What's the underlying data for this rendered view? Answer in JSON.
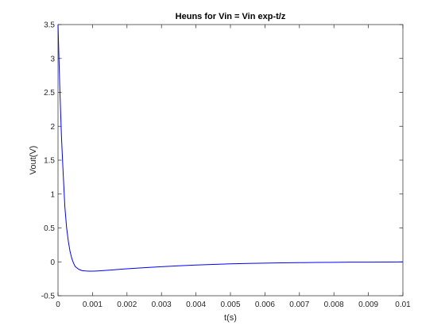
{
  "chart_data": {
    "type": "line",
    "title": "Heuns for Vin = Vin exp-t/z",
    "xlabel": "t(s)",
    "ylabel": "Vout(V)",
    "xlim": [
      0,
      0.01
    ],
    "ylim": [
      -0.5,
      3.5
    ],
    "x_ticks": [
      0,
      0.001,
      0.002,
      0.003,
      0.004,
      0.005,
      0.006,
      0.007,
      0.008,
      0.009,
      0.01
    ],
    "x_tick_labels": [
      "0",
      "0.001",
      "0.002",
      "0.003",
      "0.004",
      "0.005",
      "0.006",
      "0.007",
      "0.008",
      "0.009",
      "0.01"
    ],
    "y_ticks": [
      -0.5,
      0,
      0.5,
      1,
      1.5,
      2,
      2.5,
      3,
      3.5
    ],
    "y_tick_labels": [
      "-0.5",
      "0",
      "0.5",
      "1",
      "1.5",
      "2",
      "2.5",
      "3",
      "3.5"
    ],
    "grid": false,
    "series": [
      {
        "color": "#0000ff",
        "x": [
          0,
          5e-05,
          0.0001,
          0.00015,
          0.0002,
          0.00025,
          0.0003,
          0.00035,
          0.0004,
          0.00045,
          0.0005,
          0.0006,
          0.0007,
          0.0008,
          0.0009,
          0.001,
          0.0011,
          0.0012,
          0.0014,
          0.0016,
          0.0018,
          0.002,
          0.0025,
          0.003,
          0.0035,
          0.004,
          0.0045,
          0.005,
          0.0055,
          0.006,
          0.0065,
          0.007,
          0.0075,
          0.008,
          0.0085,
          0.009,
          0.0095,
          0.01
        ],
        "y": [
          3.5,
          2.6,
          1.85,
          1.3,
          0.8,
          0.5,
          0.3,
          0.15,
          0.05,
          -0.02,
          -0.07,
          -0.11,
          -0.13,
          -0.135,
          -0.138,
          -0.138,
          -0.136,
          -0.133,
          -0.126,
          -0.118,
          -0.11,
          -0.103,
          -0.086,
          -0.071,
          -0.058,
          -0.047,
          -0.038,
          -0.03,
          -0.024,
          -0.019,
          -0.015,
          -0.012,
          -0.009,
          -0.007,
          -0.005,
          -0.004,
          -0.003,
          -0.002
        ]
      }
    ]
  }
}
